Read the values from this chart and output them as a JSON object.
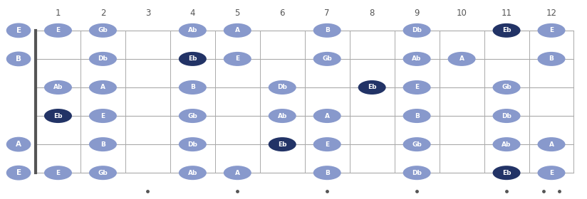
{
  "fret_labels": [
    "1",
    "2",
    "3",
    "4",
    "5",
    "6",
    "7",
    "8",
    "9",
    "10",
    "11",
    "12"
  ],
  "string_labels": [
    "E",
    "B",
    "",
    "",
    "A",
    "E"
  ],
  "string_y": [
    6,
    5,
    4,
    3,
    2,
    1
  ],
  "dot_positions_normal": [
    [
      1,
      6,
      "E"
    ],
    [
      2,
      6,
      "Gb"
    ],
    [
      4,
      6,
      "Ab"
    ],
    [
      5,
      6,
      "A"
    ],
    [
      7,
      6,
      "B"
    ],
    [
      9,
      6,
      "Db"
    ],
    [
      12,
      6,
      "E"
    ],
    [
      2,
      5,
      "Db"
    ],
    [
      5,
      5,
      "E"
    ],
    [
      7,
      5,
      "Gb"
    ],
    [
      9,
      5,
      "Ab"
    ],
    [
      10,
      5,
      "A"
    ],
    [
      12,
      5,
      "B"
    ],
    [
      1,
      4,
      "Ab"
    ],
    [
      2,
      4,
      "A"
    ],
    [
      4,
      4,
      "B"
    ],
    [
      6,
      4,
      "Db"
    ],
    [
      9,
      4,
      "E"
    ],
    [
      11,
      4,
      "Gb"
    ],
    [
      2,
      3,
      "E"
    ],
    [
      4,
      3,
      "Gb"
    ],
    [
      6,
      3,
      "Ab"
    ],
    [
      7,
      3,
      "A"
    ],
    [
      9,
      3,
      "B"
    ],
    [
      11,
      3,
      "Db"
    ],
    [
      2,
      2,
      "B"
    ],
    [
      4,
      2,
      "Db"
    ],
    [
      7,
      2,
      "E"
    ],
    [
      9,
      2,
      "Gb"
    ],
    [
      11,
      2,
      "Ab"
    ],
    [
      12,
      2,
      "A"
    ],
    [
      1,
      1,
      "E"
    ],
    [
      2,
      1,
      "Gb"
    ],
    [
      4,
      1,
      "Ab"
    ],
    [
      5,
      1,
      "A"
    ],
    [
      7,
      1,
      "B"
    ],
    [
      9,
      1,
      "Db"
    ],
    [
      12,
      1,
      "E"
    ]
  ],
  "dot_positions_dark": [
    [
      11,
      6,
      "Eb"
    ],
    [
      4,
      5,
      "Eb"
    ],
    [
      8,
      4,
      "Eb"
    ],
    [
      1,
      3,
      "Eb"
    ],
    [
      6,
      2,
      "Eb"
    ],
    [
      11,
      1,
      "Eb"
    ]
  ],
  "normal_color": "#8899cc",
  "dark_color": "#223366",
  "text_color": "#ffffff",
  "bg_color": "#ffffff",
  "fret_dot_frets": [
    3,
    5,
    7,
    9,
    11,
    12
  ],
  "fret_dot_double": [
    12
  ],
  "fret_line_color": "#aaaaaa",
  "string_line_color": "#aaaaaa",
  "nut_color": "#555555",
  "label_color": "#555555"
}
